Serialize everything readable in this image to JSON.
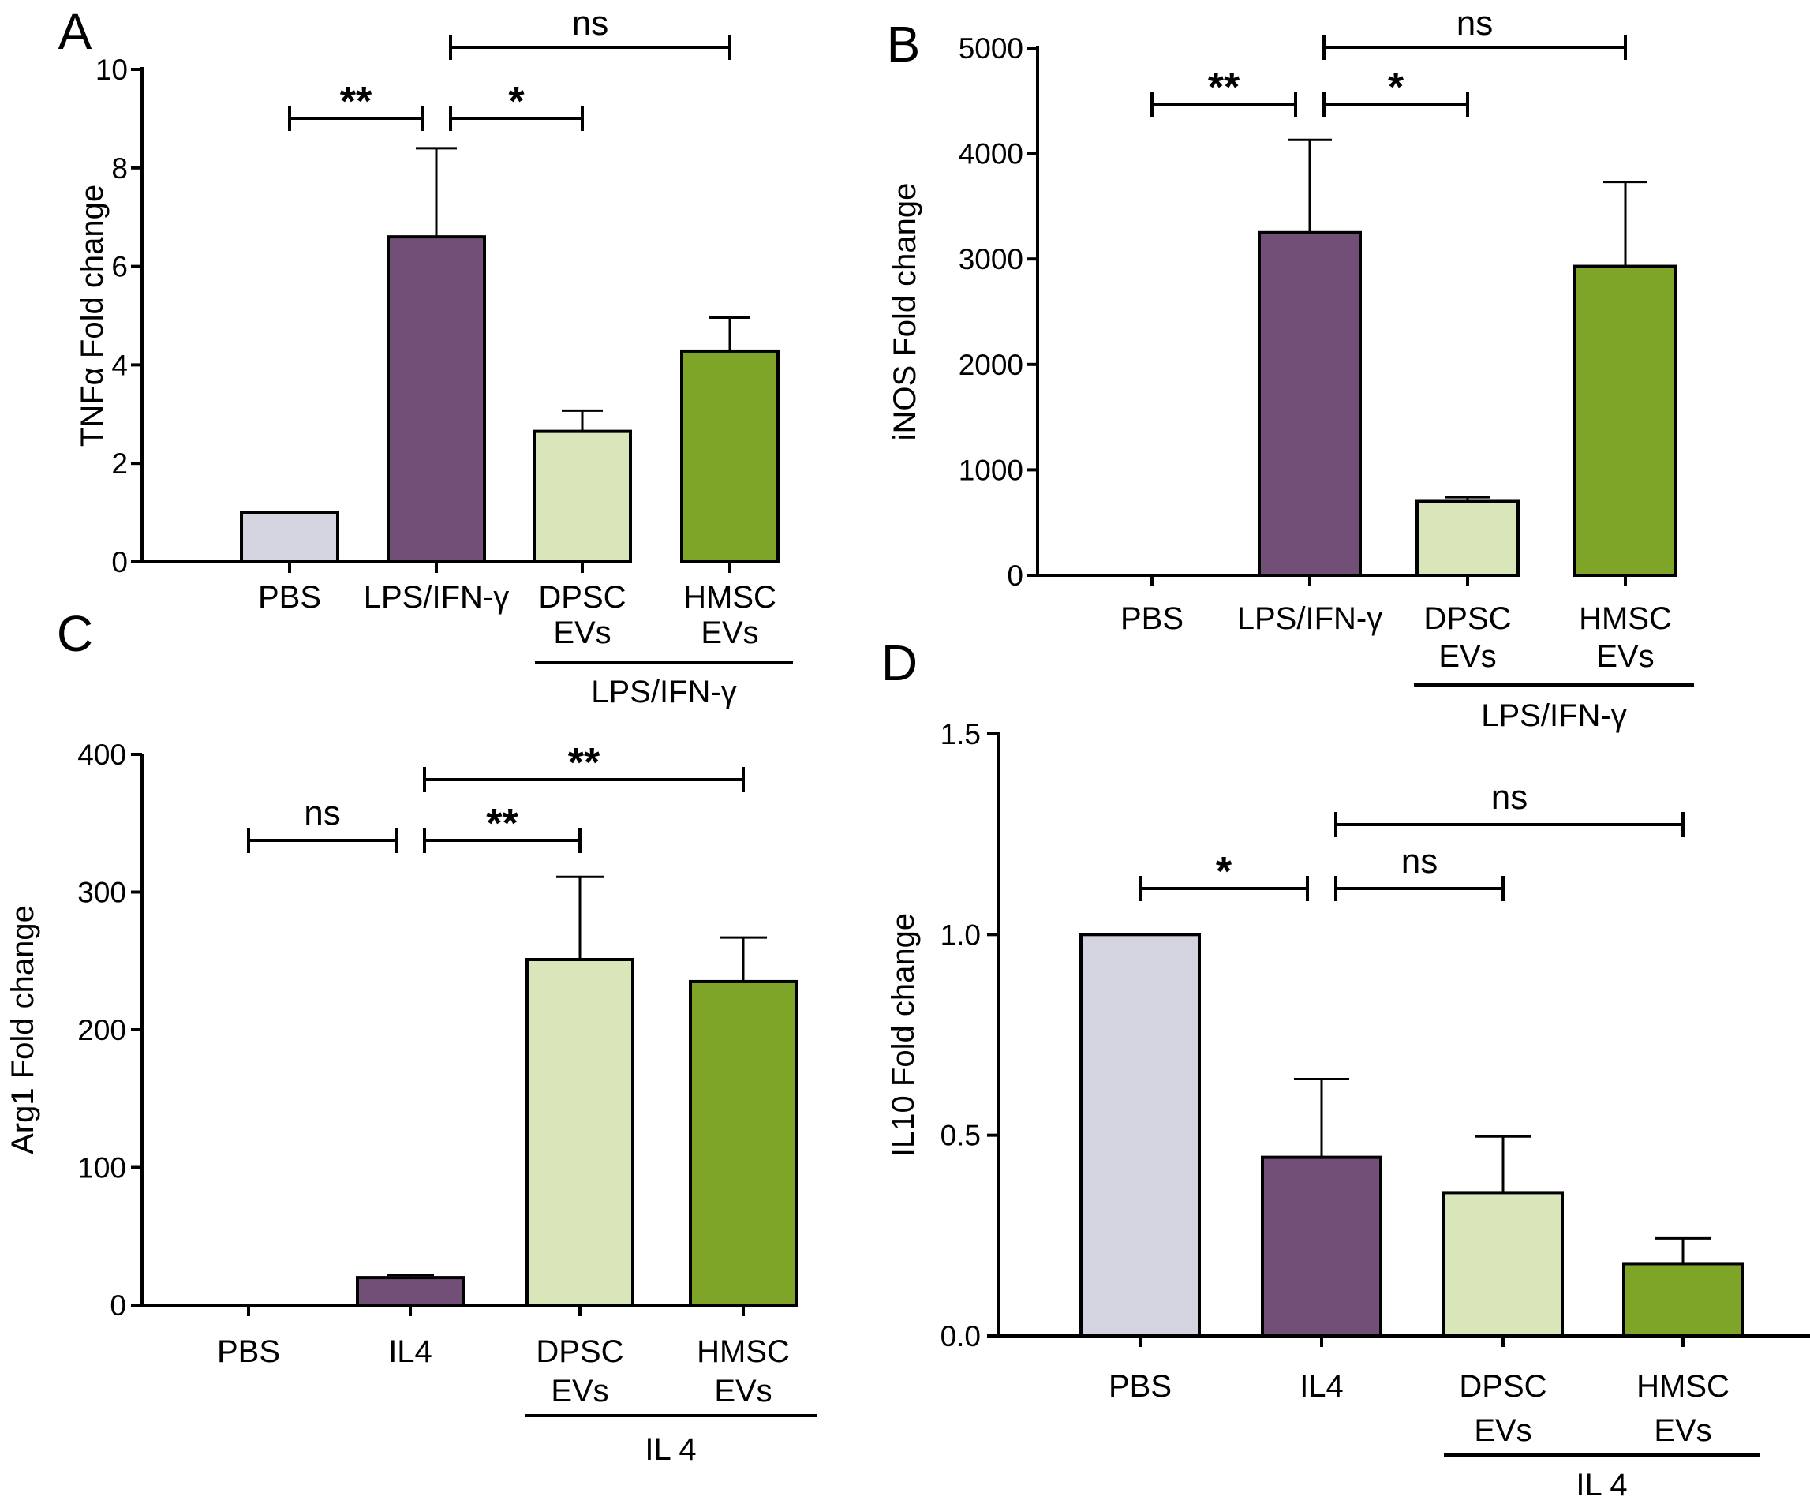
{
  "chart_data": [
    {
      "panel": "A",
      "type": "bar",
      "ylabel": "TNFα Fold change",
      "ylim": [
        0,
        10
      ],
      "yticks": [
        0,
        2,
        4,
        6,
        8,
        10
      ],
      "categories": [
        [
          "PBS"
        ],
        [
          "LPS/IFN-γ"
        ],
        [
          "DPSC",
          "EVs"
        ],
        [
          "HMSC",
          "EVs"
        ]
      ],
      "values": [
        1.0,
        6.6,
        2.65,
        4.28
      ],
      "errors": [
        0,
        1.8,
        0.42,
        0.68
      ],
      "colors": [
        "#d4d4e1",
        "#724f77",
        "#d8e6b9",
        "#7ea528"
      ],
      "group_label": "LPS/IFN-γ",
      "group_span": [
        2,
        3
      ],
      "comparisons": [
        {
          "from": 0,
          "to": 1,
          "label": "**",
          "level": 1
        },
        {
          "from": 1,
          "to": 2,
          "label": "*",
          "level": 1
        },
        {
          "from": 1,
          "to": 3,
          "label": "ns",
          "level": 2
        }
      ]
    },
    {
      "panel": "B",
      "type": "bar",
      "ylabel": "iNOS Fold change",
      "ylim": [
        0,
        5000
      ],
      "yticks": [
        0,
        1000,
        2000,
        3000,
        4000,
        5000
      ],
      "categories": [
        [
          "PBS"
        ],
        [
          "LPS/IFN-γ"
        ],
        [
          "DPSC",
          "EVs"
        ],
        [
          "HMSC",
          "EVs"
        ]
      ],
      "values": [
        1,
        3250,
        700,
        2930
      ],
      "errors": [
        0,
        880,
        40,
        800
      ],
      "colors": [
        "#d4d4e1",
        "#724f77",
        "#d8e6b9",
        "#7ea528"
      ],
      "group_label": "LPS/IFN-γ",
      "group_span": [
        2,
        3
      ],
      "comparisons": [
        {
          "from": 0,
          "to": 1,
          "label": "**",
          "level": 1
        },
        {
          "from": 1,
          "to": 2,
          "label": "*",
          "level": 1
        },
        {
          "from": 1,
          "to": 3,
          "label": "ns",
          "level": 2
        }
      ]
    },
    {
      "panel": "C",
      "type": "bar",
      "ylabel": "Arg1 Fold change",
      "ylim": [
        0,
        400
      ],
      "yticks": [
        0,
        100,
        200,
        300,
        400
      ],
      "categories": [
        [
          "PBS"
        ],
        [
          "IL4"
        ],
        [
          "DPSC",
          "EVs"
        ],
        [
          "HMSC",
          "EVs"
        ]
      ],
      "values": [
        1,
        20,
        251,
        235
      ],
      "errors": [
        0,
        2,
        60,
        32
      ],
      "colors": [
        "#d4d4e1",
        "#724f77",
        "#d8e6b9",
        "#7ea528"
      ],
      "group_label": "IL 4",
      "group_span": [
        2,
        3
      ],
      "comparisons": [
        {
          "from": 0,
          "to": 1,
          "label": "ns",
          "level": 1
        },
        {
          "from": 1,
          "to": 2,
          "label": "**",
          "level": 1
        },
        {
          "from": 1,
          "to": 3,
          "label": "**",
          "level": 2
        }
      ]
    },
    {
      "panel": "D",
      "type": "bar",
      "ylabel": "IL10 Fold change",
      "ylim": [
        0,
        1.5
      ],
      "yticks": [
        "0.0",
        "0.5",
        "1.0",
        "1.5"
      ],
      "categories": [
        [
          "PBS"
        ],
        [
          "IL4"
        ],
        [
          "DPSC",
          "EVs"
        ],
        [
          "HMSC",
          "EVs"
        ]
      ],
      "values": [
        1.0,
        0.445,
        0.357,
        0.18
      ],
      "errors": [
        0,
        0.195,
        0.14,
        0.063
      ],
      "colors": [
        "#d4d4e1",
        "#724f77",
        "#d8e6b9",
        "#7ea528"
      ],
      "group_label": "IL 4",
      "group_span": [
        2,
        3
      ],
      "comparisons": [
        {
          "from": 0,
          "to": 1,
          "label": "*",
          "level": 1
        },
        {
          "from": 1,
          "to": 2,
          "label": "ns",
          "level": 1
        },
        {
          "from": 1,
          "to": 3,
          "label": "ns",
          "level": 2
        }
      ]
    }
  ]
}
